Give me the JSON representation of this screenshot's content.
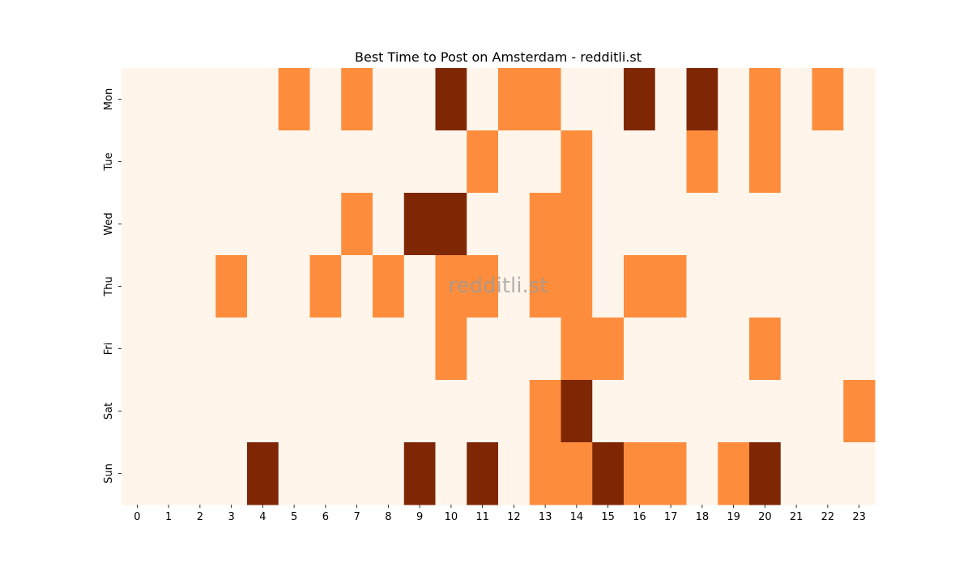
{
  "chart_data": {
    "type": "heatmap",
    "title": "Best Time to Post on Amsterdam - redditli.st",
    "watermark": "redditli.st",
    "x_categories": [
      "0",
      "1",
      "2",
      "3",
      "4",
      "5",
      "6",
      "7",
      "8",
      "9",
      "10",
      "11",
      "12",
      "13",
      "14",
      "15",
      "16",
      "17",
      "18",
      "19",
      "20",
      "21",
      "22",
      "23"
    ],
    "y_categories": [
      "Mon",
      "Tue",
      "Wed",
      "Thu",
      "Fri",
      "Sat",
      "Sun"
    ],
    "values": [
      [
        0,
        0,
        0,
        0,
        0,
        1,
        0,
        1,
        0,
        0,
        2,
        0,
        1,
        1,
        0,
        0,
        2,
        0,
        2,
        0,
        1,
        0,
        1,
        0
      ],
      [
        0,
        0,
        0,
        0,
        0,
        0,
        0,
        0,
        0,
        0,
        0,
        1,
        0,
        0,
        1,
        0,
        0,
        0,
        1,
        0,
        1,
        0,
        0,
        0
      ],
      [
        0,
        0,
        0,
        0,
        0,
        0,
        0,
        1,
        0,
        2,
        2,
        0,
        0,
        1,
        1,
        0,
        0,
        0,
        0,
        0,
        0,
        0,
        0,
        0
      ],
      [
        0,
        0,
        0,
        1,
        0,
        0,
        1,
        0,
        1,
        0,
        1,
        1,
        0,
        1,
        1,
        0,
        1,
        1,
        0,
        0,
        0,
        0,
        0,
        0
      ],
      [
        0,
        0,
        0,
        0,
        0,
        0,
        0,
        0,
        0,
        0,
        1,
        0,
        0,
        0,
        1,
        1,
        0,
        0,
        0,
        0,
        1,
        0,
        0,
        0
      ],
      [
        0,
        0,
        0,
        0,
        0,
        0,
        0,
        0,
        0,
        0,
        0,
        0,
        0,
        1,
        2,
        0,
        0,
        0,
        0,
        0,
        0,
        0,
        0,
        1
      ],
      [
        0,
        0,
        0,
        0,
        2,
        0,
        0,
        0,
        0,
        2,
        0,
        2,
        0,
        1,
        1,
        2,
        1,
        1,
        0,
        1,
        2,
        0,
        0,
        0
      ]
    ],
    "colors": [
      "#fff5eb",
      "#fd8d3c",
      "#7f2704"
    ],
    "colorbar": false,
    "grid": false
  }
}
